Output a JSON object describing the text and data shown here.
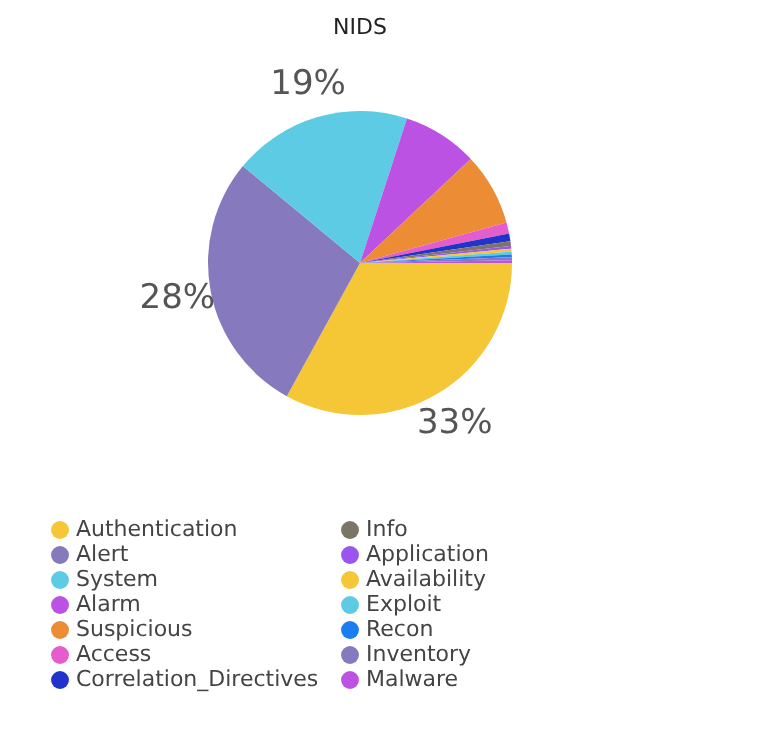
{
  "chart_data": {
    "type": "pie",
    "title": "NIDS",
    "categories": [
      "Authentication",
      "Alert",
      "System",
      "Alarm",
      "Suspicious",
      "Access",
      "Correlation_Directives",
      "Info",
      "Application",
      "Availability",
      "Exploit",
      "Recon",
      "Inventory",
      "Malware"
    ],
    "values": [
      33,
      28,
      19,
      8,
      7.7,
      1.2,
      0.8,
      0.5,
      0.3,
      0.3,
      0.3,
      0.3,
      0.3,
      0.3
    ],
    "colors": [
      "#f5c636",
      "#8679bd",
      "#5ccbe3",
      "#bb52e3",
      "#ec8c35",
      "#e55ccc",
      "#2233cc",
      "#7a7565",
      "#9955ee",
      "#f5c636",
      "#5ccbe3",
      "#1a7ef0",
      "#8679bd",
      "#bb52e3"
    ],
    "value_labels": [
      "33%",
      "28%",
      "19%",
      null,
      null,
      null,
      null,
      null,
      null,
      null,
      null,
      null,
      null,
      null
    ],
    "legend": "bottom"
  }
}
